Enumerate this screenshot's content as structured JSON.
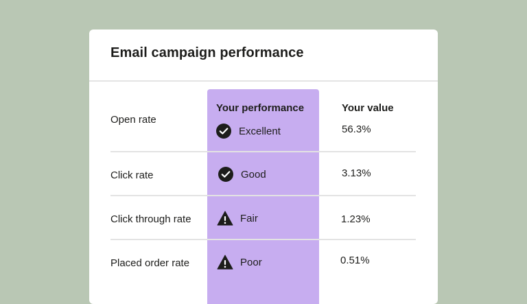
{
  "card": {
    "title": "Email campaign performance"
  },
  "table": {
    "headers": {
      "performance": "Your performance",
      "value": "Your value"
    },
    "rows": [
      {
        "metric": "Open rate",
        "status": "Excellent",
        "status_icon": "check-circle-icon",
        "value": "56.3%"
      },
      {
        "metric": "Click rate",
        "status": "Good",
        "status_icon": "check-circle-icon",
        "value": "3.13%"
      },
      {
        "metric": "Click through rate",
        "status": "Fair",
        "status_icon": "warning-triangle-icon",
        "value": "1.23%"
      },
      {
        "metric": "Placed order rate",
        "status": "Poor",
        "status_icon": "warning-triangle-icon",
        "value": "0.51%"
      }
    ]
  },
  "colors": {
    "background": "#b9c7b4",
    "highlight": "#c7adf0",
    "card": "#ffffff",
    "text": "#1d1d1b"
  }
}
